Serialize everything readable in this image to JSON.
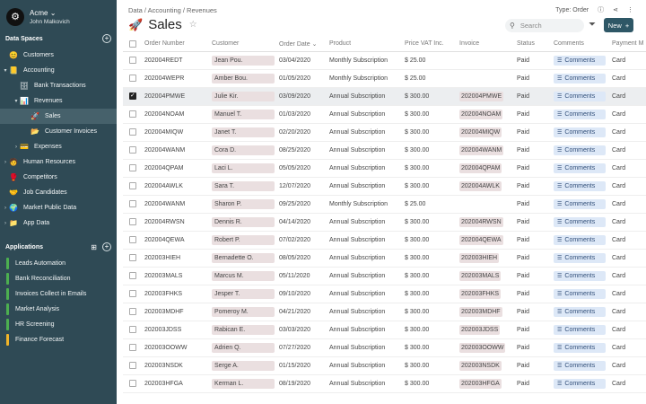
{
  "org": {
    "logo": "⚙",
    "name": "Acme",
    "user": "John Malkovich"
  },
  "sidebar": {
    "data_spaces_title": "Data Spaces",
    "items": [
      {
        "label": "Customers",
        "icon": "😊",
        "level": 0,
        "caret": ""
      },
      {
        "label": "Accounting",
        "icon": "📒",
        "level": 0,
        "caret": "▾"
      },
      {
        "label": "Bank Transactions",
        "icon": "🗄",
        "level": 1,
        "caret": ""
      },
      {
        "label": "Revenues",
        "icon": "📊",
        "level": 1,
        "caret": "▾"
      },
      {
        "label": "Sales",
        "icon": "🚀",
        "level": 2,
        "caret": "",
        "active": true
      },
      {
        "label": "Customer Invoices",
        "icon": "📂",
        "level": 2,
        "caret": ""
      },
      {
        "label": "Expenses",
        "icon": "💳",
        "level": 1,
        "caret": "›"
      },
      {
        "label": "Human Resources",
        "icon": "🧑",
        "level": 0,
        "caret": "›"
      },
      {
        "label": "Competitors",
        "icon": "🥊",
        "level": 0,
        "caret": ""
      },
      {
        "label": "Job Candidates",
        "icon": "🤝",
        "level": 0,
        "caret": ""
      },
      {
        "label": "Market Public Data",
        "icon": "🌍",
        "level": 0,
        "caret": "›"
      },
      {
        "label": "App Data",
        "icon": "📁",
        "level": 0,
        "caret": "›"
      }
    ],
    "applications_title": "Applications",
    "apps": [
      {
        "label": "Leads Automation",
        "color": "#4caf50"
      },
      {
        "label": "Bank Reconciliation",
        "color": "#4caf50"
      },
      {
        "label": "Invoices Collect in Emails",
        "color": "#4caf50"
      },
      {
        "label": "Market Analysis",
        "color": "#4caf50"
      },
      {
        "label": "HR Screening",
        "color": "#4caf50"
      },
      {
        "label": "Finance Forecast",
        "color": "#f0b429"
      }
    ]
  },
  "header": {
    "breadcrumb": "Data / Accounting / Revenues",
    "type_label": "Type: Order",
    "title_icon": "🚀",
    "title": "Sales",
    "search_placeholder": "Search",
    "new_label": "New"
  },
  "table": {
    "columns": [
      "Order Number",
      "Customer",
      "Order Date",
      "Product",
      "Price VAT Inc.",
      "Invoice",
      "Status",
      "Comments",
      "Payment M"
    ],
    "sort_indicator": "⌄",
    "comments_label": "Comments",
    "rows": [
      {
        "order": "202004REDT",
        "customer": "Jean Pou.",
        "date": "03/04/2020",
        "product": "Monthly Subscription",
        "price": "$ 25.00",
        "invoice": "",
        "status": "Paid",
        "payment": "Card",
        "checked": false
      },
      {
        "order": "202004WEPR",
        "customer": "Amber Bou.",
        "date": "01/05/2020",
        "product": "Monthly Subscription",
        "price": "$ 25.00",
        "invoice": "",
        "status": "Paid",
        "payment": "Card",
        "checked": false
      },
      {
        "order": "202004PMWE",
        "customer": "Julie Kir.",
        "date": "03/09/2020",
        "product": "Annual Subscription",
        "price": "$ 300.00",
        "invoice": "202004PMWE",
        "status": "Paid",
        "payment": "Card",
        "checked": true
      },
      {
        "order": "202004NOAM",
        "customer": "Manuel T.",
        "date": "01/03/2020",
        "product": "Annual Subscription",
        "price": "$ 300.00",
        "invoice": "202004NOAM",
        "status": "Paid",
        "payment": "Card",
        "checked": false
      },
      {
        "order": "202004MIQW",
        "customer": "Janet T.",
        "date": "02/20/2020",
        "product": "Annual Subscription",
        "price": "$ 300.00",
        "invoice": "202004MIQW",
        "status": "Paid",
        "payment": "Card",
        "checked": false
      },
      {
        "order": "202004WANM",
        "customer": "Cora D.",
        "date": "08/25/2020",
        "product": "Annual Subscription",
        "price": "$ 300.00",
        "invoice": "202004WANM",
        "status": "Paid",
        "payment": "Card",
        "checked": false
      },
      {
        "order": "202004QPAM",
        "customer": "Laci L.",
        "date": "05/05/2020",
        "product": "Annual Subscription",
        "price": "$ 300.00",
        "invoice": "202004QPAM",
        "status": "Paid",
        "payment": "Card",
        "checked": false
      },
      {
        "order": "202004AWLK",
        "customer": "Sara T.",
        "date": "12/07/2020",
        "product": "Annual Subscription",
        "price": "$ 300.00",
        "invoice": "202004AWLK",
        "status": "Paid",
        "payment": "Card",
        "checked": false
      },
      {
        "order": "202004WANM",
        "customer": "Sharon P.",
        "date": "09/25/2020",
        "product": "Monthly Subscription",
        "price": "$ 25.00",
        "invoice": "",
        "status": "Paid",
        "payment": "Card",
        "checked": false
      },
      {
        "order": "202004RWSN",
        "customer": "Dennis R.",
        "date": "04/14/2020",
        "product": "Annual Subscription",
        "price": "$ 300.00",
        "invoice": "202004RWSN",
        "status": "Paid",
        "payment": "Card",
        "checked": false
      },
      {
        "order": "202004QEWA",
        "customer": "Robert P.",
        "date": "07/02/2020",
        "product": "Annual Subscription",
        "price": "$ 300.00",
        "invoice": "202004QEWA",
        "status": "Paid",
        "payment": "Card",
        "checked": false
      },
      {
        "order": "202003HIEH",
        "customer": "Bernadette O.",
        "date": "08/05/2020",
        "product": "Annual Subscription",
        "price": "$ 300.00",
        "invoice": "202003HIEH",
        "status": "Paid",
        "payment": "Card",
        "checked": false
      },
      {
        "order": "202003MALS",
        "customer": "Marcus M.",
        "date": "05/11/2020",
        "product": "Annual Subscription",
        "price": "$ 300.00",
        "invoice": "202003MALS",
        "status": "Paid",
        "payment": "Card",
        "checked": false
      },
      {
        "order": "202003FHKS",
        "customer": "Jesper T.",
        "date": "09/10/2020",
        "product": "Annual Subscription",
        "price": "$ 300.00",
        "invoice": "202003FHKS",
        "status": "Paid",
        "payment": "Card",
        "checked": false
      },
      {
        "order": "202003MDHF",
        "customer": "Pomeroy M.",
        "date": "04/21/2020",
        "product": "Annual Subscription",
        "price": "$ 300.00",
        "invoice": "202003MDHF",
        "status": "Paid",
        "payment": "Card",
        "checked": false
      },
      {
        "order": "202003JDSS",
        "customer": "Rabican E.",
        "date": "03/03/2020",
        "product": "Annual Subscription",
        "price": "$ 300.00",
        "invoice": "202003JDSS",
        "status": "Paid",
        "payment": "Card",
        "checked": false
      },
      {
        "order": "202003OOWW",
        "customer": "Adrien Q.",
        "date": "07/27/2020",
        "product": "Annual Subscription",
        "price": "$ 300.00",
        "invoice": "202003OOWW",
        "status": "Paid",
        "payment": "Card",
        "checked": false
      },
      {
        "order": "202003NSDK",
        "customer": "Serge A.",
        "date": "01/15/2020",
        "product": "Annual Subscription",
        "price": "$ 300.00",
        "invoice": "202003NSDK",
        "status": "Paid",
        "payment": "Card",
        "checked": false
      },
      {
        "order": "202003HFGA",
        "customer": "Kerman L.",
        "date": "08/19/2020",
        "product": "Annual Subscription",
        "price": "$ 300.00",
        "invoice": "202003HFGA",
        "status": "Paid",
        "payment": "Card",
        "checked": false
      }
    ]
  }
}
